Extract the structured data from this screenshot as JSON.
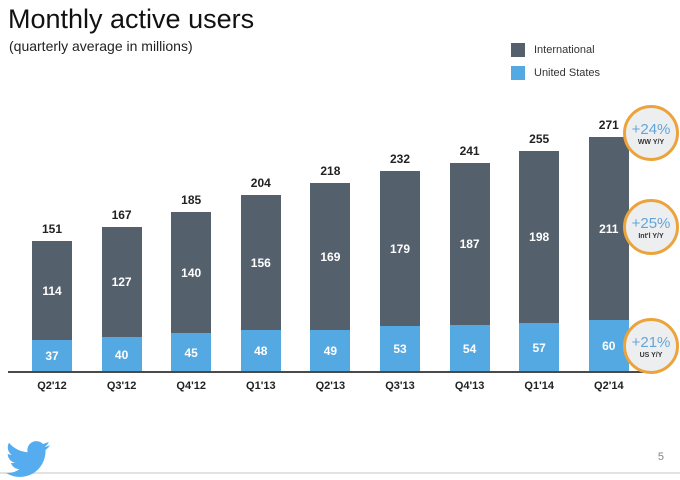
{
  "title": "Monthly active users",
  "subtitle": "(quarterly average in millions)",
  "legend": [
    {
      "label": "International"
    },
    {
      "label": "United States"
    }
  ],
  "chart_data": {
    "type": "bar",
    "stacked": true,
    "title": "Monthly active users",
    "subtitle": "(quarterly average in millions)",
    "xlabel": "",
    "ylabel": "",
    "grid": false,
    "legend_position": "top-right",
    "categories": [
      "Q2'12",
      "Q3'12",
      "Q4'12",
      "Q1'13",
      "Q2'13",
      "Q3'13",
      "Q4'13",
      "Q1'14",
      "Q2'14"
    ],
    "series": [
      {
        "name": "United States",
        "color": "#55a9e2",
        "values": [
          37,
          40,
          45,
          48,
          49,
          53,
          54,
          57,
          60
        ]
      },
      {
        "name": "International",
        "color": "#54606c",
        "values": [
          114,
          127,
          140,
          156,
          169,
          179,
          187,
          198,
          211
        ]
      }
    ],
    "totals": [
      151,
      167,
      185,
      204,
      218,
      232,
      241,
      255,
      271
    ]
  },
  "badges": [
    {
      "pct": "+24%",
      "label": "WW Y/Y"
    },
    {
      "pct": "+25%",
      "label": "Int'l Y/Y"
    },
    {
      "pct": "+21%",
      "label": "US Y/Y"
    }
  ],
  "footer": {
    "page_number": "5",
    "logo": "twitter-bird"
  },
  "colors": {
    "international": "#54606c",
    "united_states": "#55a9e2",
    "badge_border": "#eba43b",
    "badge_fill": "#edeef0",
    "badge_pct_text": "#64a5d9",
    "logo_blue": "#55acee",
    "axis_line": "#4a4a4a"
  }
}
